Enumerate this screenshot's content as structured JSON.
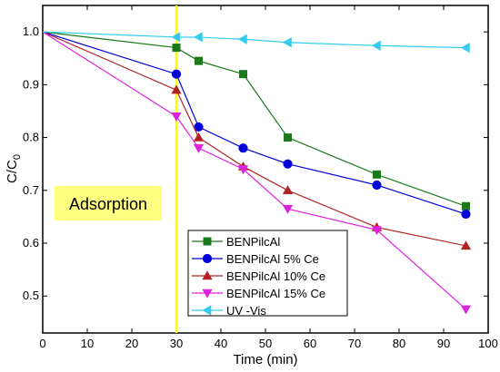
{
  "chart_data": {
    "type": "line",
    "xlabel": "Time (min)",
    "ylabel_main": "C/C",
    "ylabel_sub": "0",
    "xlim": [
      0,
      100
    ],
    "ylim": [
      0.43,
      1.05
    ],
    "xticks": [
      0,
      10,
      20,
      30,
      40,
      50,
      60,
      70,
      80,
      90,
      100
    ],
    "yticks": [
      0.5,
      0.6,
      0.7,
      0.8,
      0.9,
      1.0
    ],
    "ytick_labels": [
      "0.5",
      "0.6",
      "0.7",
      "0.8",
      "0.9",
      "1.0"
    ],
    "grid": false,
    "legend_position": "bottom-center",
    "annotation": {
      "text": "Adsorption",
      "background": "#ffff80",
      "vline_x": 30,
      "vline_color": "#ffff00"
    },
    "series": [
      {
        "name": "BENPilcAl",
        "color": "#1a7a1a",
        "marker": "square",
        "x": [
          0,
          30,
          35,
          45,
          55,
          75,
          95
        ],
        "y": [
          1.0,
          0.97,
          0.945,
          0.92,
          0.8,
          0.73,
          0.67
        ]
      },
      {
        "name": "BENPilcAl 5% Ce",
        "color": "#0000dd",
        "marker": "circle",
        "x": [
          0,
          30,
          35,
          45,
          55,
          75,
          95
        ],
        "y": [
          1.0,
          0.92,
          0.82,
          0.78,
          0.75,
          0.71,
          0.655
        ]
      },
      {
        "name": "BENPilcAl 10% Ce",
        "color": "#b22222",
        "marker": "triangle-up",
        "x": [
          0,
          30,
          35,
          45,
          55,
          75,
          95
        ],
        "y": [
          1.0,
          0.89,
          0.8,
          0.745,
          0.7,
          0.63,
          0.595
        ]
      },
      {
        "name": "BENPilcAl 15% Ce",
        "color": "#dd22dd",
        "marker": "triangle-down",
        "x": [
          0,
          30,
          35,
          45,
          55,
          75,
          95
        ],
        "y": [
          1.0,
          0.84,
          0.78,
          0.74,
          0.665,
          0.625,
          0.475
        ]
      },
      {
        "name": "UV -Vis",
        "color": "#33ccee",
        "marker": "triangle-left",
        "x": [
          0,
          30,
          35,
          45,
          55,
          75,
          95
        ],
        "y": [
          1.0,
          0.99,
          0.99,
          0.986,
          0.98,
          0.974,
          0.97
        ]
      }
    ]
  }
}
